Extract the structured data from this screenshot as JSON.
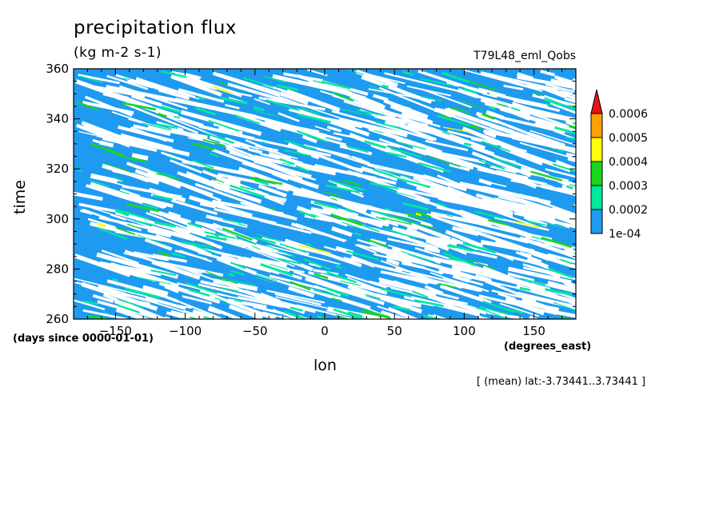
{
  "chart_data": {
    "type": "heatmap",
    "title": "precipitation flux",
    "units": "(kg m-2 s-1)",
    "run_label": "T79L48_eml_Qobs",
    "xlabel": "lon",
    "ylabel": "time",
    "x_units_note": "(degrees_east)",
    "y_units_note": "(days since 0000-01-01)",
    "subset_note": "[ (mean) lat:-3.73441..3.73441 ]",
    "xlim": [
      -180,
      180
    ],
    "ylim": [
      260,
      360
    ],
    "x_ticks": [
      -150,
      -100,
      -50,
      0,
      50,
      100,
      150
    ],
    "x_tick_labels": [
      "−150",
      "−100",
      "−50",
      "0",
      "50",
      "100",
      "150"
    ],
    "y_ticks": [
      260,
      280,
      300,
      320,
      340,
      360
    ],
    "y_tick_labels": [
      "260",
      "280",
      "300",
      "320",
      "340",
      "360"
    ],
    "colorbar": {
      "levels": [
        0.0001,
        0.0002,
        0.0003,
        0.0004,
        0.0005,
        0.0006
      ],
      "level_labels": [
        "1e-04",
        "0.0002",
        "0.0003",
        "0.0004",
        "0.0005",
        "0.0006"
      ],
      "colors": [
        "#1e9bf0",
        "#00e89a",
        "#19d51e",
        "#ffff00",
        "#ff9f00",
        "#e61414"
      ],
      "extend": "max"
    },
    "grid": false
  }
}
